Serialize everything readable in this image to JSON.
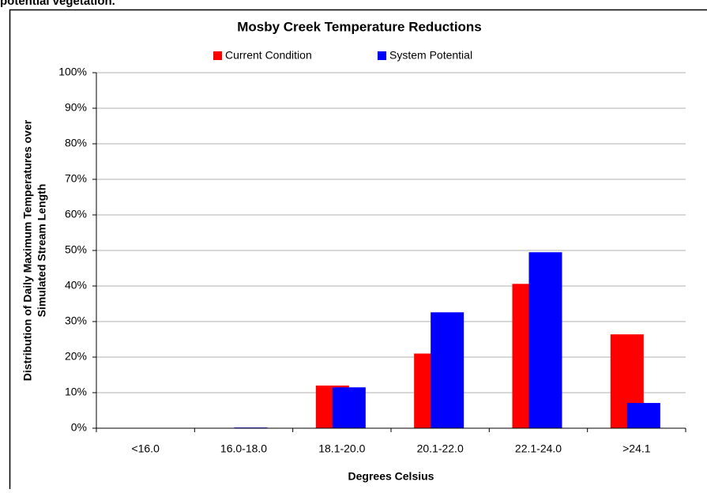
{
  "caption": "potential vegetation.",
  "chart_data": {
    "type": "bar",
    "title": "Mosby Creek Temperature Reductions",
    "x_label": "Degrees Celsius",
    "y_label": [
      "Distribution of Daily Maximum Temperatures over",
      "Simulated Stream Length"
    ],
    "categories": [
      "<16.0",
      "16.0-18.0",
      "18.1-20.0",
      "20.1-22.0",
      "22.1-24.0",
      ">24.1"
    ],
    "series": [
      {
        "name": "Current Condition",
        "color": "#ff0000",
        "values": [
          0,
          0,
          12,
          21,
          40.6,
          26.4
        ]
      },
      {
        "name": "System Potential",
        "color": "#0000ff",
        "values": [
          0,
          0.2,
          11.5,
          32.6,
          49.5,
          7.1
        ]
      }
    ],
    "ylim": [
      0,
      100
    ],
    "yticks": [
      {
        "value": 0,
        "label": "0%"
      },
      {
        "value": 10,
        "label": "10%"
      },
      {
        "value": 20,
        "label": "20%"
      },
      {
        "value": 30,
        "label": "30%"
      },
      {
        "value": 40,
        "label": "40%"
      },
      {
        "value": 50,
        "label": "50%"
      },
      {
        "value": 60,
        "label": "60%"
      },
      {
        "value": 70,
        "label": "70%"
      },
      {
        "value": 80,
        "label": "80%"
      },
      {
        "value": 90,
        "label": "90%"
      },
      {
        "value": 100,
        "label": "100%"
      }
    ],
    "grid": true,
    "legend": "top"
  }
}
